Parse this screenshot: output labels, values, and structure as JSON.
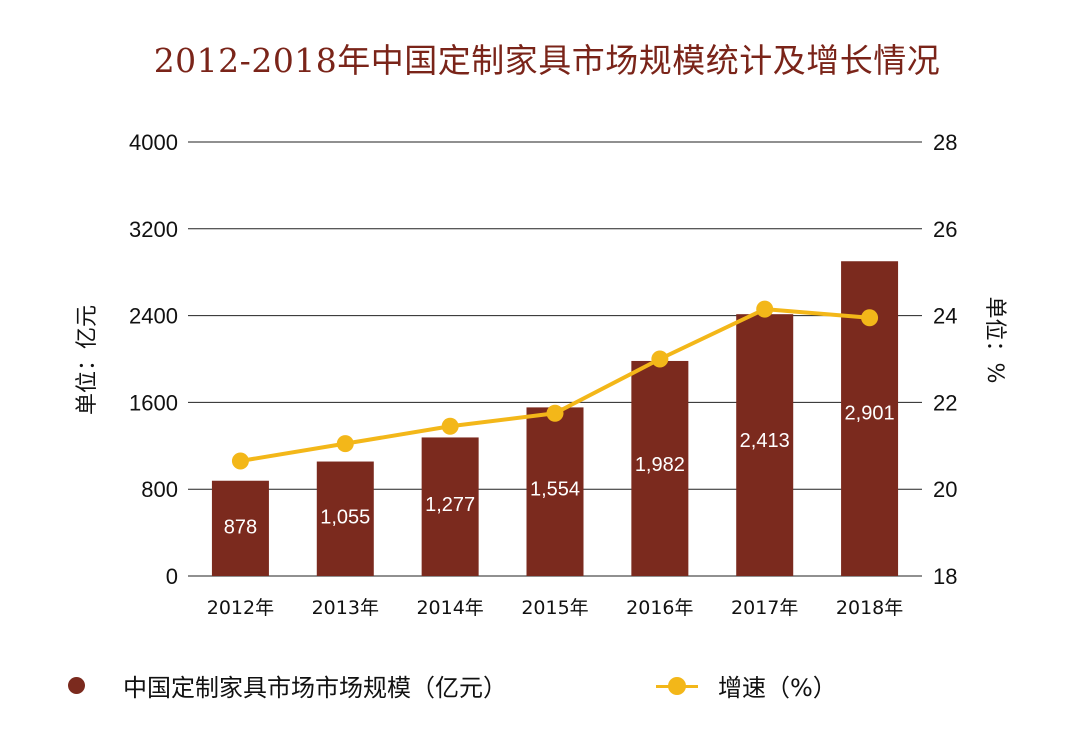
{
  "chart_data": {
    "type": "bar+line",
    "title": "2012-2018年中国定制家具市场规模统计及增长情况",
    "categories": [
      "2012年",
      "2013年",
      "2014年",
      "2015年",
      "2016年",
      "2017年",
      "2018年"
    ],
    "series": [
      {
        "name": "中国定制家具市场市场规模（亿元）",
        "type": "bar",
        "axis": "left",
        "values": [
          878,
          1055,
          1277,
          1554,
          1982,
          2413,
          2901
        ],
        "value_labels": [
          "878",
          "1,055",
          "1,277",
          "1,554",
          "1,982",
          "2,413",
          "2,901"
        ]
      },
      {
        "name": "增速（%）",
        "type": "line",
        "axis": "right",
        "values": [
          20.65,
          21.05,
          21.45,
          21.75,
          23.0,
          24.15,
          23.95
        ]
      }
    ],
    "y_left": {
      "label": "单位：亿元",
      "ylim": [
        0,
        4000
      ],
      "ticks": [
        "0",
        "800",
        "1600",
        "2400",
        "3200",
        "4000"
      ]
    },
    "y_right": {
      "label": "单位：%",
      "ylim": [
        18,
        28
      ],
      "ticks": [
        "18",
        "20",
        "22",
        "24",
        "26",
        "28"
      ]
    },
    "grid": true,
    "legend_position": "bottom",
    "colors": {
      "bar": "#7b2a1e",
      "line": "#f3b719",
      "title": "#7a2419",
      "grid": "#222222"
    }
  }
}
